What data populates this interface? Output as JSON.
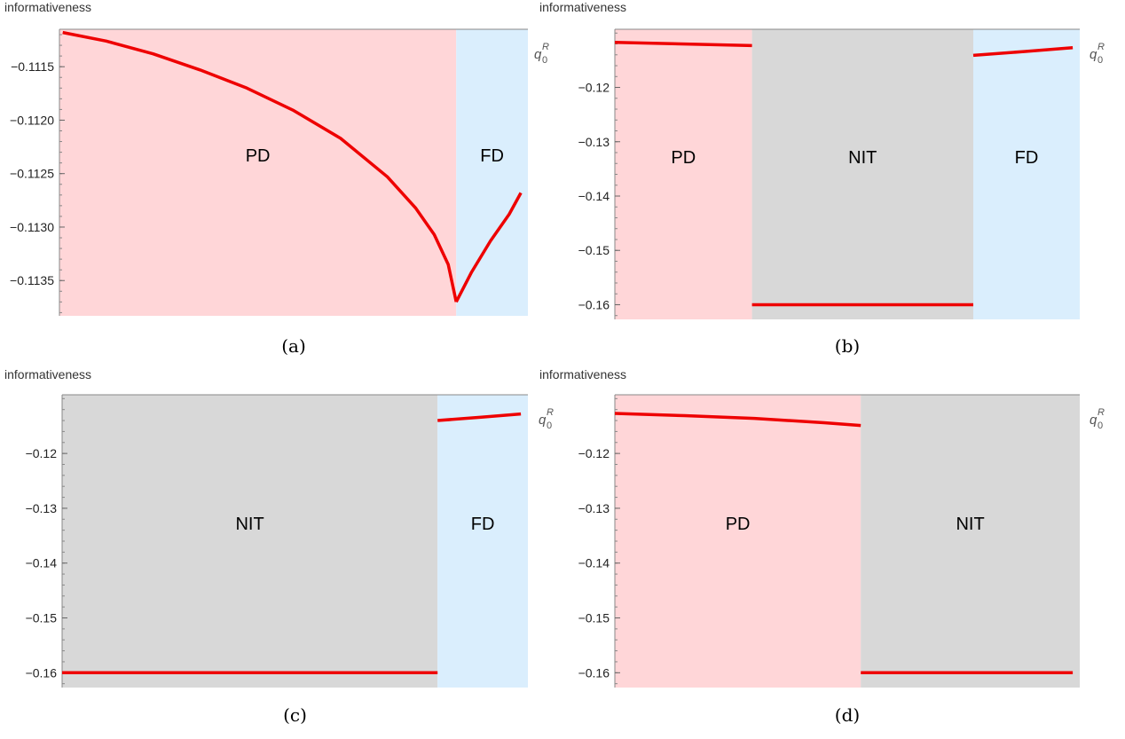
{
  "panels": [
    {
      "caption": "(a)",
      "y_axis_label": "informativeness",
      "x_axis_label": "q",
      "x_axis_sub": "0",
      "x_axis_sup": "R",
      "chart_data": {
        "type": "line",
        "ylim": [
          -0.11383,
          -0.11115
        ],
        "xlim": [
          0,
          1
        ],
        "yticks": [
          -0.1115,
          -0.112,
          -0.1125,
          -0.113,
          -0.1135
        ],
        "ytick_labels": [
          "−0.1115",
          "−0.1120",
          "−0.1125",
          "−0.1130",
          "−0.1135"
        ],
        "regions": [
          {
            "label": "PD",
            "x0": 0,
            "x1": 0.847,
            "color": "#ffd6d8"
          },
          {
            "label": "FD",
            "x0": 0.847,
            "x1": 1,
            "color": "#daeefd"
          }
        ],
        "series": [
          {
            "color": "#ee0000",
            "x": [
              0.007,
              0.1,
              0.2,
              0.3,
              0.4,
              0.5,
              0.6,
              0.7,
              0.76,
              0.8,
              0.83,
              0.847
            ],
            "y": [
              -0.11118,
              -0.11126,
              -0.11138,
              -0.11153,
              -0.1117,
              -0.11191,
              -0.11217,
              -0.11253,
              -0.11282,
              -0.11307,
              -0.11335,
              -0.1137
            ]
          },
          {
            "color": "#ee0000",
            "x": [
              0.847,
              0.88,
              0.92,
              0.96,
              0.985
            ],
            "y": [
              -0.1137,
              -0.11342,
              -0.11313,
              -0.11288,
              -0.11268
            ]
          }
        ]
      }
    },
    {
      "caption": "(b)",
      "y_axis_label": "informativeness",
      "x_axis_label": "q",
      "x_axis_sub": "0",
      "x_axis_sup": "R",
      "chart_data": {
        "type": "line",
        "ylim": [
          -0.1627,
          -0.1093
        ],
        "xlim": [
          0,
          1
        ],
        "yticks": [
          -0.12,
          -0.13,
          -0.14,
          -0.15,
          -0.16
        ],
        "ytick_labels": [
          "−0.12",
          "−0.13",
          "−0.14",
          "−0.15",
          "−0.16"
        ],
        "regions": [
          {
            "label": "PD",
            "x0": 0,
            "x1": 0.295,
            "color": "#ffd6d8"
          },
          {
            "label": "NIT",
            "x0": 0.295,
            "x1": 0.771,
            "color": "#d8d8d8"
          },
          {
            "label": "FD",
            "x0": 0.771,
            "x1": 1,
            "color": "#daeefd"
          }
        ],
        "series": [
          {
            "color": "#ee0000",
            "x": [
              0,
              0.295
            ],
            "y": [
              -0.1117,
              -0.1123
            ]
          },
          {
            "color": "#ee0000",
            "x": [
              0.295,
              0.771
            ],
            "y": [
              -0.16,
              -0.16
            ]
          },
          {
            "color": "#ee0000",
            "x": [
              0.771,
              0.88,
              0.985
            ],
            "y": [
              -0.1141,
              -0.1134,
              -0.1127
            ]
          }
        ]
      }
    },
    {
      "caption": "(c)",
      "y_axis_label": "informativeness",
      "x_axis_label": "q",
      "x_axis_sub": "0",
      "x_axis_sup": "R",
      "chart_data": {
        "type": "line",
        "ylim": [
          -0.1627,
          -0.1093
        ],
        "xlim": [
          0,
          1
        ],
        "yticks": [
          -0.12,
          -0.13,
          -0.14,
          -0.15,
          -0.16
        ],
        "ytick_labels": [
          "−0.12",
          "−0.13",
          "−0.14",
          "−0.15",
          "−0.16"
        ],
        "regions": [
          {
            "label": "NIT",
            "x0": 0,
            "x1": 0.806,
            "color": "#d8d8d8"
          },
          {
            "label": "FD",
            "x0": 0.806,
            "x1": 1,
            "color": "#daeefd"
          }
        ],
        "series": [
          {
            "color": "#ee0000",
            "x": [
              0,
              0.806
            ],
            "y": [
              -0.16,
              -0.16
            ]
          },
          {
            "color": "#ee0000",
            "x": [
              0.806,
              0.9,
              0.985
            ],
            "y": [
              -0.114,
              -0.1134,
              -0.1128
            ]
          }
        ]
      }
    },
    {
      "caption": "(d)",
      "y_axis_label": "informativeness",
      "x_axis_label": "q",
      "x_axis_sub": "0",
      "x_axis_sup": "R",
      "chart_data": {
        "type": "line",
        "ylim": [
          -0.1627,
          -0.1093
        ],
        "xlim": [
          0,
          1
        ],
        "yticks": [
          -0.12,
          -0.13,
          -0.14,
          -0.15,
          -0.16
        ],
        "ytick_labels": [
          "−0.12",
          "−0.13",
          "−0.14",
          "−0.15",
          "−0.16"
        ],
        "regions": [
          {
            "label": "PD",
            "x0": 0,
            "x1": 0.529,
            "color": "#ffd6d8"
          },
          {
            "label": "NIT",
            "x0": 0.529,
            "x1": 1,
            "color": "#d8d8d8"
          }
        ],
        "series": [
          {
            "color": "#ee0000",
            "x": [
              0,
              0.15,
              0.3,
              0.45,
              0.529
            ],
            "y": [
              -0.1127,
              -0.1131,
              -0.1136,
              -0.1144,
              -0.1149
            ]
          },
          {
            "color": "#ee0000",
            "x": [
              0.529,
              0.985
            ],
            "y": [
              -0.16,
              -0.16
            ]
          }
        ]
      }
    }
  ]
}
